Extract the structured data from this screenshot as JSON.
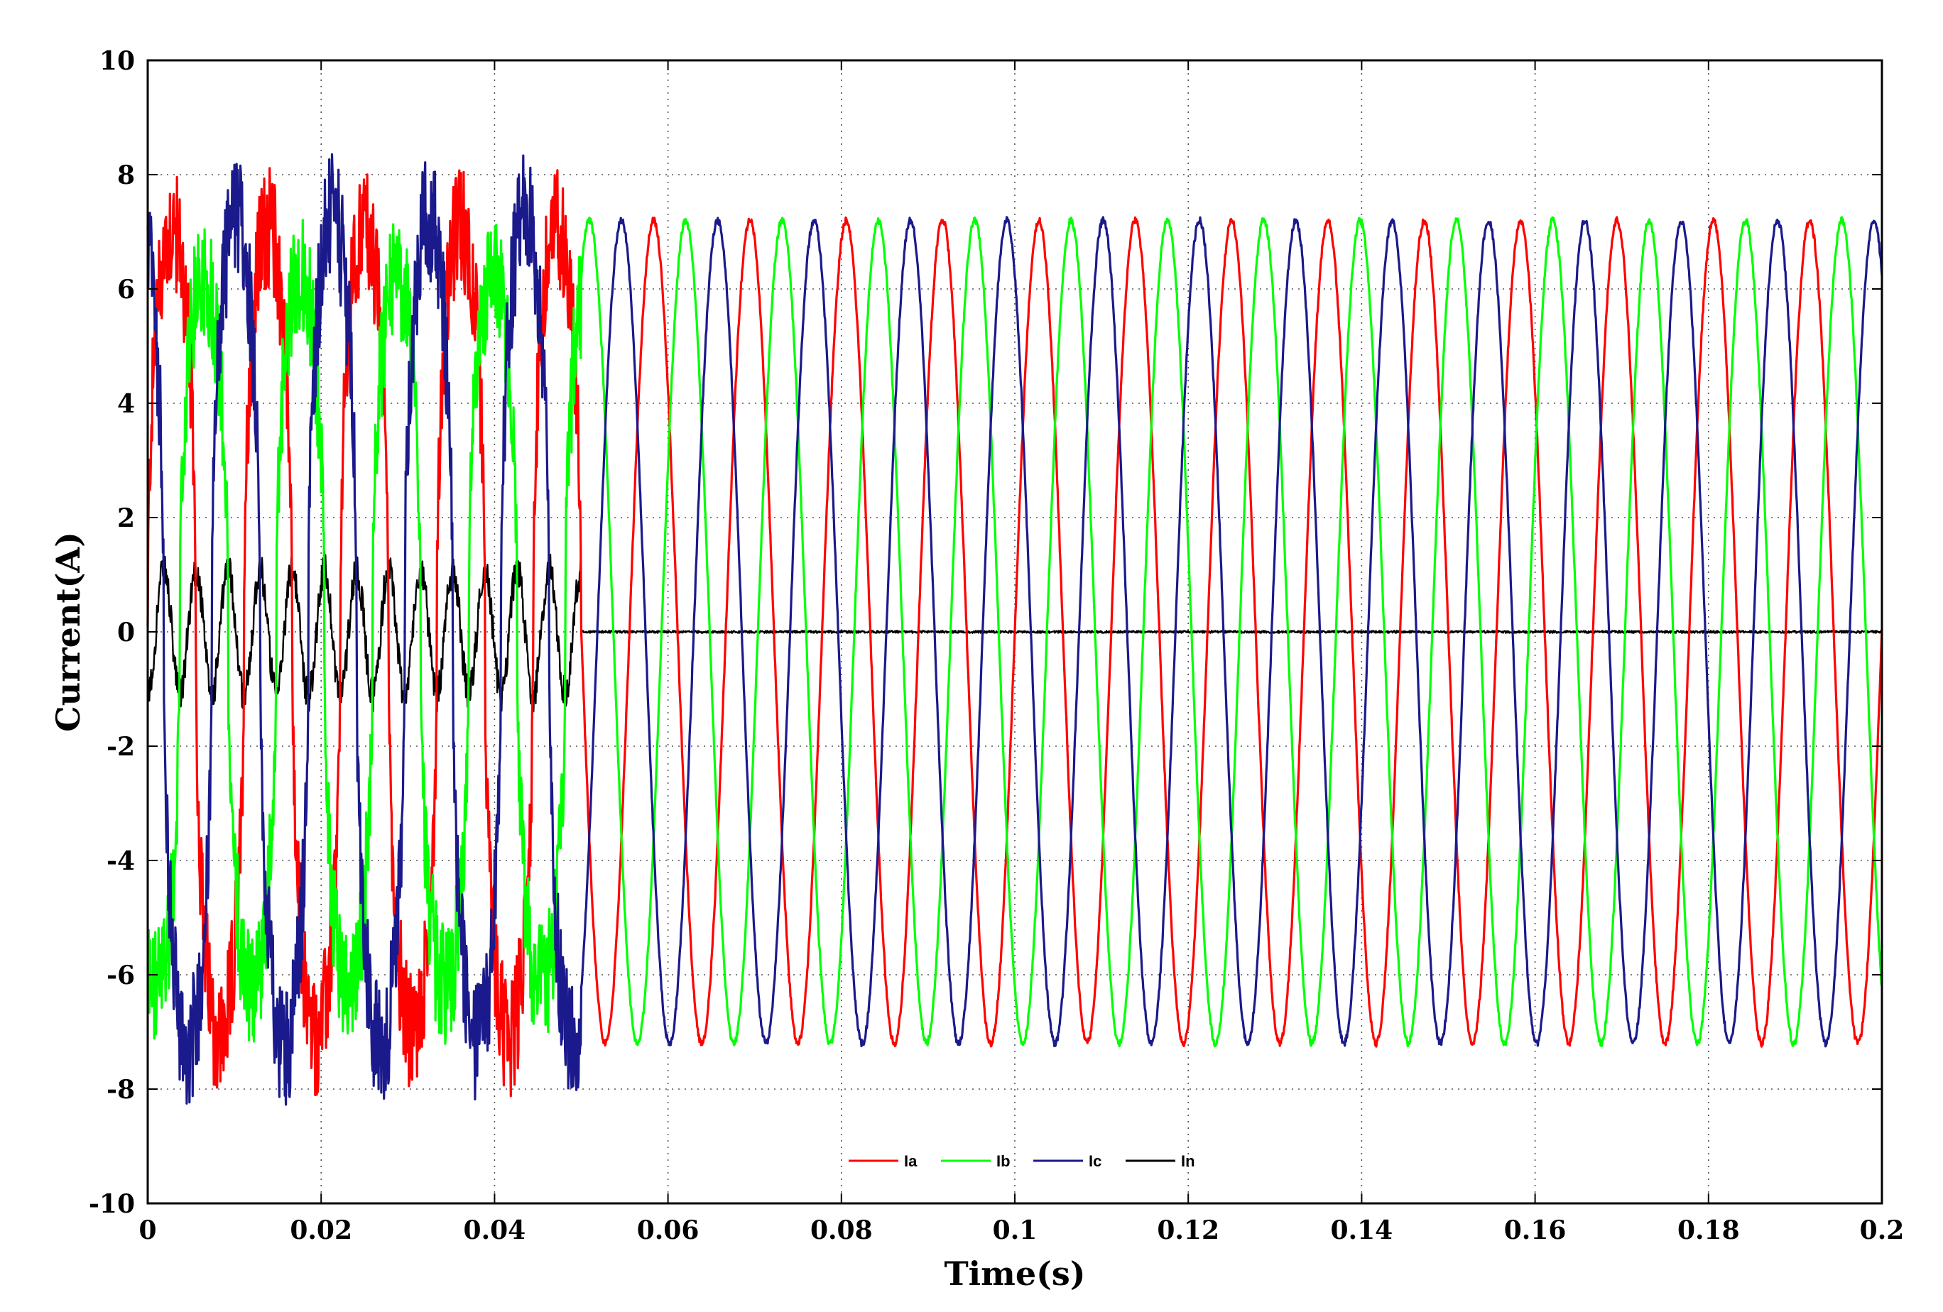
{
  "chart_data": {
    "type": "line",
    "title": "",
    "xlabel": "Time(s)",
    "ylabel": "Current(A)",
    "xlim": [
      0,
      0.2
    ],
    "ylim": [
      -10,
      10
    ],
    "x_ticks": [
      "0",
      "0.02",
      "0.04",
      "0.06",
      "0.08",
      "0.1",
      "0.12",
      "0.14",
      "0.16",
      "0.18",
      "0.2"
    ],
    "y_ticks": [
      "10",
      "8",
      "6",
      "4",
      "2",
      "0",
      "-2",
      "-4",
      "-6",
      "-8",
      "-10"
    ],
    "grid": true,
    "legend_position": "bottom-center",
    "fundamental_frequency_hz": 90,
    "compensation_start_time_s": 0.05,
    "series": [
      {
        "name": "Ia",
        "color": "#ff0000",
        "phase_deg": 0,
        "before_compensation": {
          "time_range": [
            0,
            0.05
          ],
          "peak": 8.7,
          "min": -8.6,
          "shape": "distorted, noisy"
        },
        "after_compensation": {
          "time_range": [
            0.05,
            0.2
          ],
          "amplitude": 7.2,
          "shape": "sinusoidal"
        }
      },
      {
        "name": "Ib",
        "color": "#00ff00",
        "phase_deg": -120,
        "before_compensation": {
          "time_range": [
            0,
            0.05
          ],
          "peak": 7.8,
          "min": -7.4,
          "shape": "distorted, noisy"
        },
        "after_compensation": {
          "time_range": [
            0.05,
            0.2
          ],
          "amplitude": 7.2,
          "shape": "sinusoidal"
        }
      },
      {
        "name": "Ic",
        "color": "#1a1a8c",
        "phase_deg": 120,
        "before_compensation": {
          "time_range": [
            0,
            0.05
          ],
          "peak": 9.0,
          "min": -8.7,
          "shape": "distorted, noisy"
        },
        "after_compensation": {
          "time_range": [
            0.05,
            0.2
          ],
          "amplitude": 7.2,
          "shape": "sinusoidal"
        }
      },
      {
        "name": "In",
        "color": "#000000",
        "before_compensation": {
          "time_range": [
            0,
            0.05
          ],
          "peak": 1.5,
          "min": -2.1,
          "shape": "oscillating neutral current"
        },
        "after_compensation": {
          "time_range": [
            0.05,
            0.2
          ],
          "value": 0,
          "shape": "near zero"
        }
      }
    ]
  }
}
